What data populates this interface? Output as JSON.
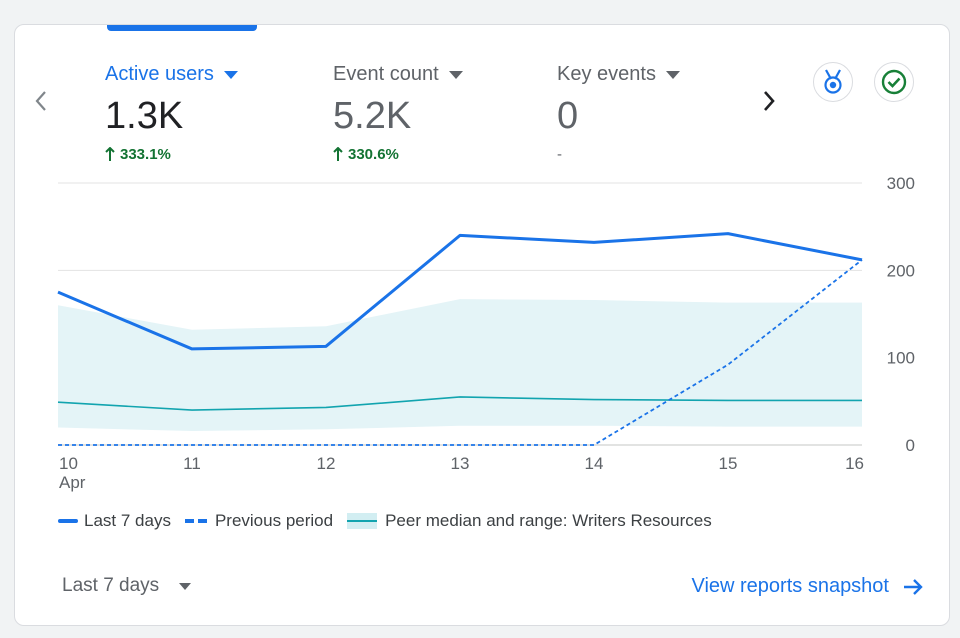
{
  "metrics": [
    {
      "label": "Active users",
      "value": "1.3K",
      "delta": "333.1%",
      "active": true
    },
    {
      "label": "Event count",
      "value": "5.2K",
      "delta": "330.6%",
      "active": false
    },
    {
      "label": "Key events",
      "value": "0",
      "delta": "-",
      "active": false
    }
  ],
  "colors": {
    "primary": "#1a73e8",
    "positive": "#137333",
    "peer_band": "#e4f4f7",
    "peer_median": "#12a4af",
    "insight_icon": "#1a73e8",
    "check_icon": "#188038"
  },
  "icons": {
    "prev": "chevron-left-icon",
    "next": "chevron-right-icon",
    "insights": "medal-icon",
    "status": "check-circle-icon",
    "dropdown": "caret-down-icon",
    "link_arrow": "arrow-right-icon"
  },
  "chart_data": {
    "type": "line",
    "x": [
      "10",
      "11",
      "12",
      "13",
      "14",
      "15",
      "16"
    ],
    "x_sub": "Apr",
    "y_ticks": [
      "300",
      "200",
      "100",
      "0"
    ],
    "ylim": [
      0,
      300
    ],
    "y_axis_side": "right",
    "grid": true,
    "series": [
      {
        "name": "Last 7 days",
        "style": "solid",
        "values": [
          175,
          110,
          113,
          240,
          232,
          242,
          212
        ]
      },
      {
        "name": "Previous period",
        "style": "dashed",
        "values": [
          0,
          0,
          0,
          0,
          0,
          92,
          212
        ]
      },
      {
        "name": "Peer median and range: Writers Resources",
        "style": "band",
        "median": [
          49,
          40,
          43,
          55,
          52,
          51,
          51
        ],
        "low": [
          20,
          16,
          18,
          22,
          22,
          21,
          21
        ],
        "high": [
          160,
          132,
          136,
          167,
          166,
          163,
          163
        ]
      }
    ],
    "legend_position": "bottom-left"
  },
  "footer": {
    "range_label": "Last 7 days",
    "link_label": "View reports snapshot"
  }
}
